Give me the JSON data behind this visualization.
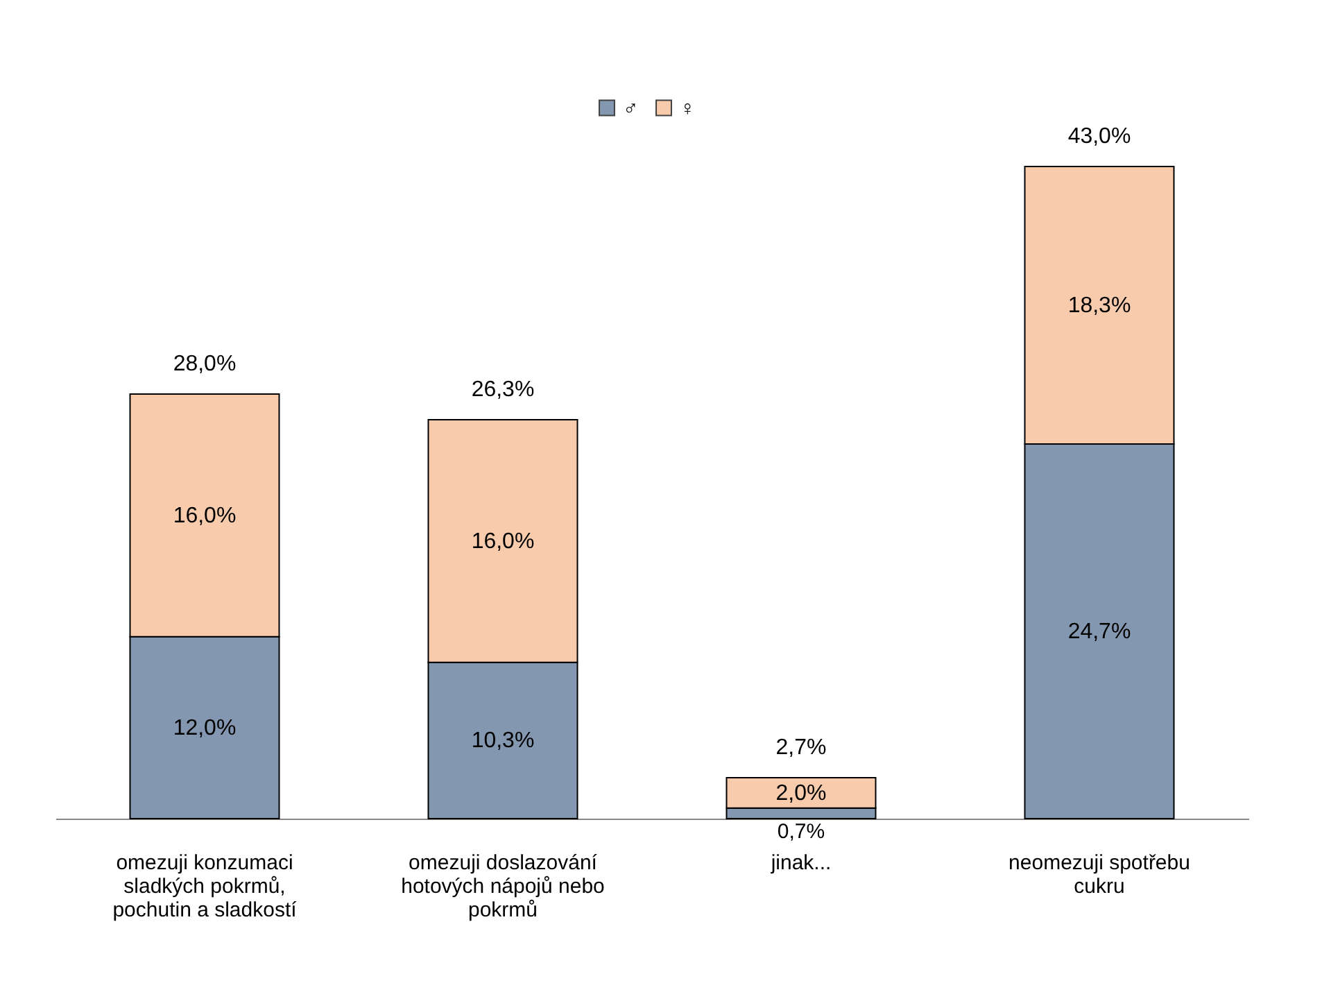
{
  "chart_data": {
    "type": "bar",
    "stacked": true,
    "categories": [
      "omezuji konzumaci sladkých pokrmů, pochutin a sladkostí",
      "omezuji doslazování hotových nápojů nebo pokrmů",
      "jinak...",
      "neomezuji spotřebu cukru"
    ],
    "series": [
      {
        "name": "♂",
        "color": "#8497b0",
        "values": [
          12.0,
          10.3,
          0.7,
          24.7
        ],
        "value_labels": [
          "12,0%",
          "10,3%",
          "0,7%",
          "24,7%"
        ]
      },
      {
        "name": "♀",
        "color": "#f8cbad",
        "values": [
          16.0,
          16.0,
          2.0,
          18.3
        ],
        "value_labels": [
          "16,0%",
          "16,0%",
          "2,0%",
          "18,3%"
        ]
      }
    ],
    "totals": [
      "28,0%",
      "26,3%",
      "2,7%",
      "43,0%"
    ],
    "legend": "top",
    "grid": false
  }
}
